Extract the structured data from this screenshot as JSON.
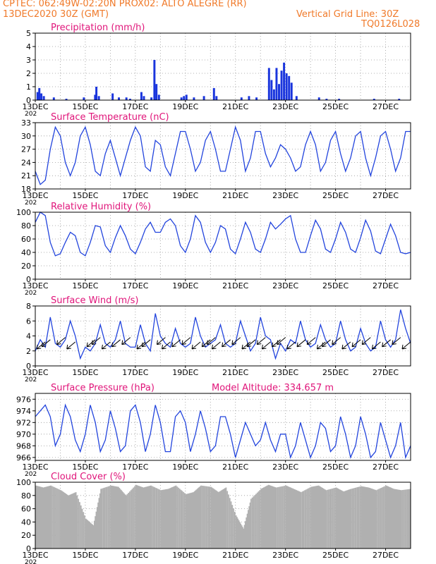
{
  "header": {
    "left_line1": "CPTEC:   062:49W-02:20N  PROX02: ALTO ALEGRE (RR)",
    "left_line2": "13DEC2020 30Z (GMT)",
    "right_line1": "Vertical Grid Line: 30Z",
    "right_line2": "TQ0126L028"
  },
  "colors": {
    "header": "#f07a2a",
    "title": "#e0157a",
    "line": "#2244dd",
    "bars": "#1a35dd",
    "cloud": "#b0b0b0",
    "grid": "#999999"
  },
  "x_ticks": [
    "13DEC",
    "15DEC",
    "17DEC",
    "19DEC",
    "21DEC",
    "23DEC",
    "25DEC",
    "27DEC"
  ],
  "x_year_fragment": "202",
  "chart_data": [
    {
      "id": "precipitation",
      "type": "bar",
      "title": "Precipitation (mm/h)",
      "ylim": [
        0,
        5
      ],
      "yticks": [
        0,
        1,
        2,
        3,
        4,
        5
      ],
      "x_start_day": 13,
      "x_end_day": 28,
      "bars": [
        [
          13.05,
          0.6
        ],
        [
          13.12,
          0.9
        ],
        [
          13.2,
          0.5
        ],
        [
          13.3,
          0.3
        ],
        [
          13.7,
          0.2
        ],
        [
          14.2,
          0.1
        ],
        [
          14.9,
          0.2
        ],
        [
          15.35,
          0.4
        ],
        [
          15.4,
          1.0
        ],
        [
          15.5,
          0.3
        ],
        [
          16.05,
          0.5
        ],
        [
          16.3,
          0.2
        ],
        [
          16.6,
          0.2
        ],
        [
          16.75,
          0.1
        ],
        [
          17.2,
          0.6
        ],
        [
          17.3,
          0.3
        ],
        [
          17.6,
          0.2
        ],
        [
          17.72,
          3.0
        ],
        [
          17.8,
          1.2
        ],
        [
          17.9,
          0.4
        ],
        [
          18.8,
          0.2
        ],
        [
          18.9,
          0.3
        ],
        [
          19.0,
          0.4
        ],
        [
          19.3,
          0.2
        ],
        [
          19.7,
          0.3
        ],
        [
          20.1,
          0.9
        ],
        [
          20.2,
          0.3
        ],
        [
          21.2,
          0.2
        ],
        [
          21.5,
          0.3
        ],
        [
          21.8,
          0.2
        ],
        [
          22.3,
          2.4
        ],
        [
          22.4,
          1.5
        ],
        [
          22.5,
          0.8
        ],
        [
          22.6,
          2.4
        ],
        [
          22.7,
          1.2
        ],
        [
          22.8,
          2.2
        ],
        [
          22.9,
          2.8
        ],
        [
          23.0,
          2.0
        ],
        [
          23.1,
          1.8
        ],
        [
          23.2,
          1.3
        ],
        [
          23.4,
          0.3
        ],
        [
          24.3,
          0.2
        ],
        [
          24.6,
          0.1
        ],
        [
          25.1,
          0.1
        ],
        [
          26.5,
          0.1
        ],
        [
          27.5,
          0.1
        ]
      ]
    },
    {
      "id": "temperature",
      "type": "line",
      "title": "Surface Temperature (nC)",
      "ylim": [
        18,
        33
      ],
      "yticks": [
        18,
        21,
        24,
        27,
        30,
        33
      ],
      "x": [
        13.0,
        13.2,
        13.4,
        13.6,
        13.8,
        14.0,
        14.2,
        14.4,
        14.6,
        14.8,
        15.0,
        15.2,
        15.4,
        15.6,
        15.8,
        16.0,
        16.2,
        16.4,
        16.6,
        16.8,
        17.0,
        17.2,
        17.4,
        17.6,
        17.8,
        18.0,
        18.2,
        18.4,
        18.6,
        18.8,
        19.0,
        19.2,
        19.4,
        19.6,
        19.8,
        20.0,
        20.2,
        20.4,
        20.6,
        20.8,
        21.0,
        21.2,
        21.4,
        21.6,
        21.8,
        22.0,
        22.2,
        22.4,
        22.6,
        22.8,
        23.0,
        23.2,
        23.4,
        23.6,
        23.8,
        24.0,
        24.2,
        24.4,
        24.6,
        24.8,
        25.0,
        25.2,
        25.4,
        25.6,
        25.8,
        26.0,
        26.2,
        26.4,
        26.6,
        26.8,
        27.0,
        27.2,
        27.4,
        27.6,
        27.8,
        28.0
      ],
      "values": [
        22,
        19,
        20,
        27,
        32,
        30,
        24,
        21,
        24,
        30,
        32,
        28,
        22,
        21,
        26,
        29,
        25,
        21,
        25,
        29,
        32,
        30,
        23,
        22,
        29,
        28,
        23,
        21,
        26,
        31,
        31,
        27,
        22,
        24,
        29,
        31,
        27,
        22,
        22,
        27,
        32,
        29,
        22,
        25,
        31,
        31,
        26,
        23,
        25,
        28,
        27,
        25,
        22,
        23,
        28,
        31,
        28,
        22,
        24,
        29,
        31,
        26,
        22,
        25,
        30,
        31,
        25,
        21,
        25,
        30,
        31,
        27,
        22,
        25,
        31,
        31
      ]
    },
    {
      "id": "humidity",
      "type": "line",
      "title": "Relative Humidity (%)",
      "ylim": [
        0,
        100
      ],
      "yticks": [
        0,
        20,
        40,
        60,
        80,
        100
      ],
      "x": [
        13.0,
        13.2,
        13.4,
        13.6,
        13.8,
        14.0,
        14.2,
        14.4,
        14.6,
        14.8,
        15.0,
        15.2,
        15.4,
        15.6,
        15.8,
        16.0,
        16.2,
        16.4,
        16.6,
        16.8,
        17.0,
        17.2,
        17.4,
        17.6,
        17.8,
        18.0,
        18.2,
        18.4,
        18.6,
        18.8,
        19.0,
        19.2,
        19.4,
        19.6,
        19.8,
        20.0,
        20.2,
        20.4,
        20.6,
        20.8,
        21.0,
        21.2,
        21.4,
        21.6,
        21.8,
        22.0,
        22.2,
        22.4,
        22.6,
        22.8,
        23.0,
        23.2,
        23.4,
        23.6,
        23.8,
        24.0,
        24.2,
        24.4,
        24.6,
        24.8,
        25.0,
        25.2,
        25.4,
        25.6,
        25.8,
        26.0,
        26.2,
        26.4,
        26.6,
        26.8,
        27.0,
        27.2,
        27.4,
        27.6,
        27.8,
        28.0
      ],
      "values": [
        85,
        100,
        95,
        55,
        35,
        38,
        55,
        70,
        65,
        40,
        35,
        55,
        80,
        78,
        50,
        40,
        62,
        80,
        65,
        45,
        38,
        55,
        75,
        85,
        70,
        70,
        85,
        90,
        80,
        50,
        40,
        60,
        95,
        85,
        55,
        40,
        55,
        80,
        75,
        45,
        38,
        60,
        85,
        70,
        45,
        40,
        60,
        85,
        75,
        82,
        90,
        95,
        60,
        40,
        40,
        65,
        88,
        75,
        45,
        40,
        60,
        85,
        70,
        45,
        40,
        62,
        88,
        72,
        42,
        38,
        60,
        82,
        65,
        40,
        38,
        40
      ]
    },
    {
      "id": "wind",
      "type": "line",
      "title": "Surface Wind (m/s)",
      "ylim": [
        0,
        8
      ],
      "yticks": [
        0,
        2,
        4,
        6,
        8
      ],
      "x": [
        13.0,
        13.2,
        13.4,
        13.6,
        13.8,
        14.0,
        14.2,
        14.4,
        14.6,
        14.8,
        15.0,
        15.2,
        15.4,
        15.6,
        15.8,
        16.0,
        16.2,
        16.4,
        16.6,
        16.8,
        17.0,
        17.2,
        17.4,
        17.6,
        17.8,
        18.0,
        18.2,
        18.4,
        18.6,
        18.8,
        19.0,
        19.2,
        19.4,
        19.6,
        19.8,
        20.0,
        20.2,
        20.4,
        20.6,
        20.8,
        21.0,
        21.2,
        21.4,
        21.6,
        21.8,
        22.0,
        22.2,
        22.4,
        22.6,
        22.8,
        23.0,
        23.2,
        23.4,
        23.6,
        23.8,
        24.0,
        24.2,
        24.4,
        24.6,
        24.8,
        25.0,
        25.2,
        25.4,
        25.6,
        25.8,
        26.0,
        26.2,
        26.4,
        26.6,
        26.8,
        27.0,
        27.2,
        27.4,
        27.6,
        27.8,
        28.0
      ],
      "values": [
        2.0,
        3.5,
        2.5,
        6.5,
        3.0,
        2.5,
        3.5,
        6.0,
        4.0,
        1.0,
        2.5,
        2.0,
        3.0,
        5.5,
        3.0,
        2.5,
        3.5,
        6.0,
        3.0,
        2.5,
        2.5,
        5.5,
        3.0,
        2.0,
        7.0,
        4.0,
        3.0,
        2.5,
        5.0,
        3.0,
        2.5,
        3.0,
        6.5,
        4.0,
        2.5,
        3.0,
        3.5,
        5.5,
        3.0,
        2.5,
        3.0,
        6.0,
        4.0,
        2.0,
        3.0,
        6.5,
        4.0,
        3.5,
        1.0,
        3.0,
        2.0,
        3.5,
        3.0,
        6.0,
        3.5,
        2.5,
        3.0,
        5.5,
        3.5,
        2.5,
        3.0,
        6.0,
        3.5,
        2.0,
        2.5,
        5.0,
        3.0,
        2.0,
        2.5,
        6.0,
        3.5,
        2.5,
        3.5,
        7.5,
        5.0,
        3.0
      ],
      "arrows_x": [
        13.4,
        13.6,
        14.2,
        14.6,
        15.4,
        15.6,
        16.0,
        16.4,
        16.8,
        17.4,
        17.6,
        18.2,
        18.4,
        18.8,
        19.2,
        19.6,
        20.0,
        20.2,
        20.4,
        20.8,
        21.2,
        21.6,
        21.8,
        22.2,
        22.4,
        22.8,
        23.0,
        23.4,
        23.8,
        24.2,
        24.6,
        24.8,
        25.2,
        25.6,
        26.0,
        26.4,
        26.8,
        27.2,
        27.6,
        28.0
      ]
    },
    {
      "id": "pressure",
      "type": "line",
      "title": "Surface Pressure (hPa)",
      "annotation": "Model Altitude: 334.657 m",
      "ylim": [
        965.5,
        977
      ],
      "yticks": [
        966,
        968,
        970,
        972,
        974,
        976
      ],
      "x": [
        13.0,
        13.2,
        13.4,
        13.6,
        13.8,
        14.0,
        14.2,
        14.4,
        14.6,
        14.8,
        15.0,
        15.2,
        15.4,
        15.6,
        15.8,
        16.0,
        16.2,
        16.4,
        16.6,
        16.8,
        17.0,
        17.2,
        17.4,
        17.6,
        17.8,
        18.0,
        18.2,
        18.4,
        18.6,
        18.8,
        19.0,
        19.2,
        19.4,
        19.6,
        19.8,
        20.0,
        20.2,
        20.4,
        20.6,
        20.8,
        21.0,
        21.2,
        21.4,
        21.6,
        21.8,
        22.0,
        22.2,
        22.4,
        22.6,
        22.8,
        23.0,
        23.2,
        23.4,
        23.6,
        23.8,
        24.0,
        24.2,
        24.4,
        24.6,
        24.8,
        25.0,
        25.2,
        25.4,
        25.6,
        25.8,
        26.0,
        26.2,
        26.4,
        26.6,
        26.8,
        27.0,
        27.2,
        27.4,
        27.6,
        27.8,
        28.0
      ],
      "values": [
        973,
        974,
        975,
        973,
        968,
        970,
        975,
        973,
        969,
        967,
        970,
        975,
        972,
        967,
        969,
        974,
        971,
        967,
        968,
        974,
        975,
        972,
        967,
        970,
        975,
        972,
        967,
        967,
        973,
        974,
        972,
        967,
        970,
        974,
        971,
        967,
        968,
        973,
        973,
        970,
        966,
        969,
        972,
        970,
        968,
        969,
        972,
        969,
        967,
        970,
        970,
        966,
        968,
        972,
        969,
        966,
        968,
        972,
        971,
        967,
        968,
        973,
        970,
        966,
        968,
        973,
        970,
        966,
        967,
        972,
        969,
        966,
        968,
        972,
        966,
        968
      ]
    },
    {
      "id": "cloud_cover",
      "type": "area",
      "title": "Cloud Cover (%)",
      "ylim": [
        0,
        100
      ],
      "yticks": [
        0,
        20,
        40,
        60,
        80,
        100
      ],
      "x": [
        13.0,
        13.3,
        13.6,
        14.0,
        14.3,
        14.6,
        15.0,
        15.3,
        15.6,
        16.0,
        16.3,
        16.6,
        17.0,
        17.3,
        17.6,
        18.0,
        18.3,
        18.6,
        19.0,
        19.3,
        19.6,
        20.0,
        20.3,
        20.6,
        21.0,
        21.3,
        21.6,
        22.0,
        22.3,
        22.6,
        23.0,
        23.3,
        23.6,
        24.0,
        24.3,
        24.6,
        25.0,
        25.3,
        25.6,
        26.0,
        26.3,
        26.6,
        27.0,
        27.3,
        27.6,
        28.0
      ],
      "values": [
        95,
        92,
        95,
        88,
        80,
        85,
        45,
        35,
        90,
        95,
        93,
        80,
        96,
        92,
        95,
        88,
        90,
        95,
        82,
        85,
        95,
        93,
        85,
        92,
        50,
        30,
        75,
        90,
        96,
        92,
        95,
        90,
        85,
        93,
        95,
        88,
        92,
        86,
        90,
        94,
        92,
        88,
        95,
        90,
        88,
        90
      ]
    }
  ]
}
